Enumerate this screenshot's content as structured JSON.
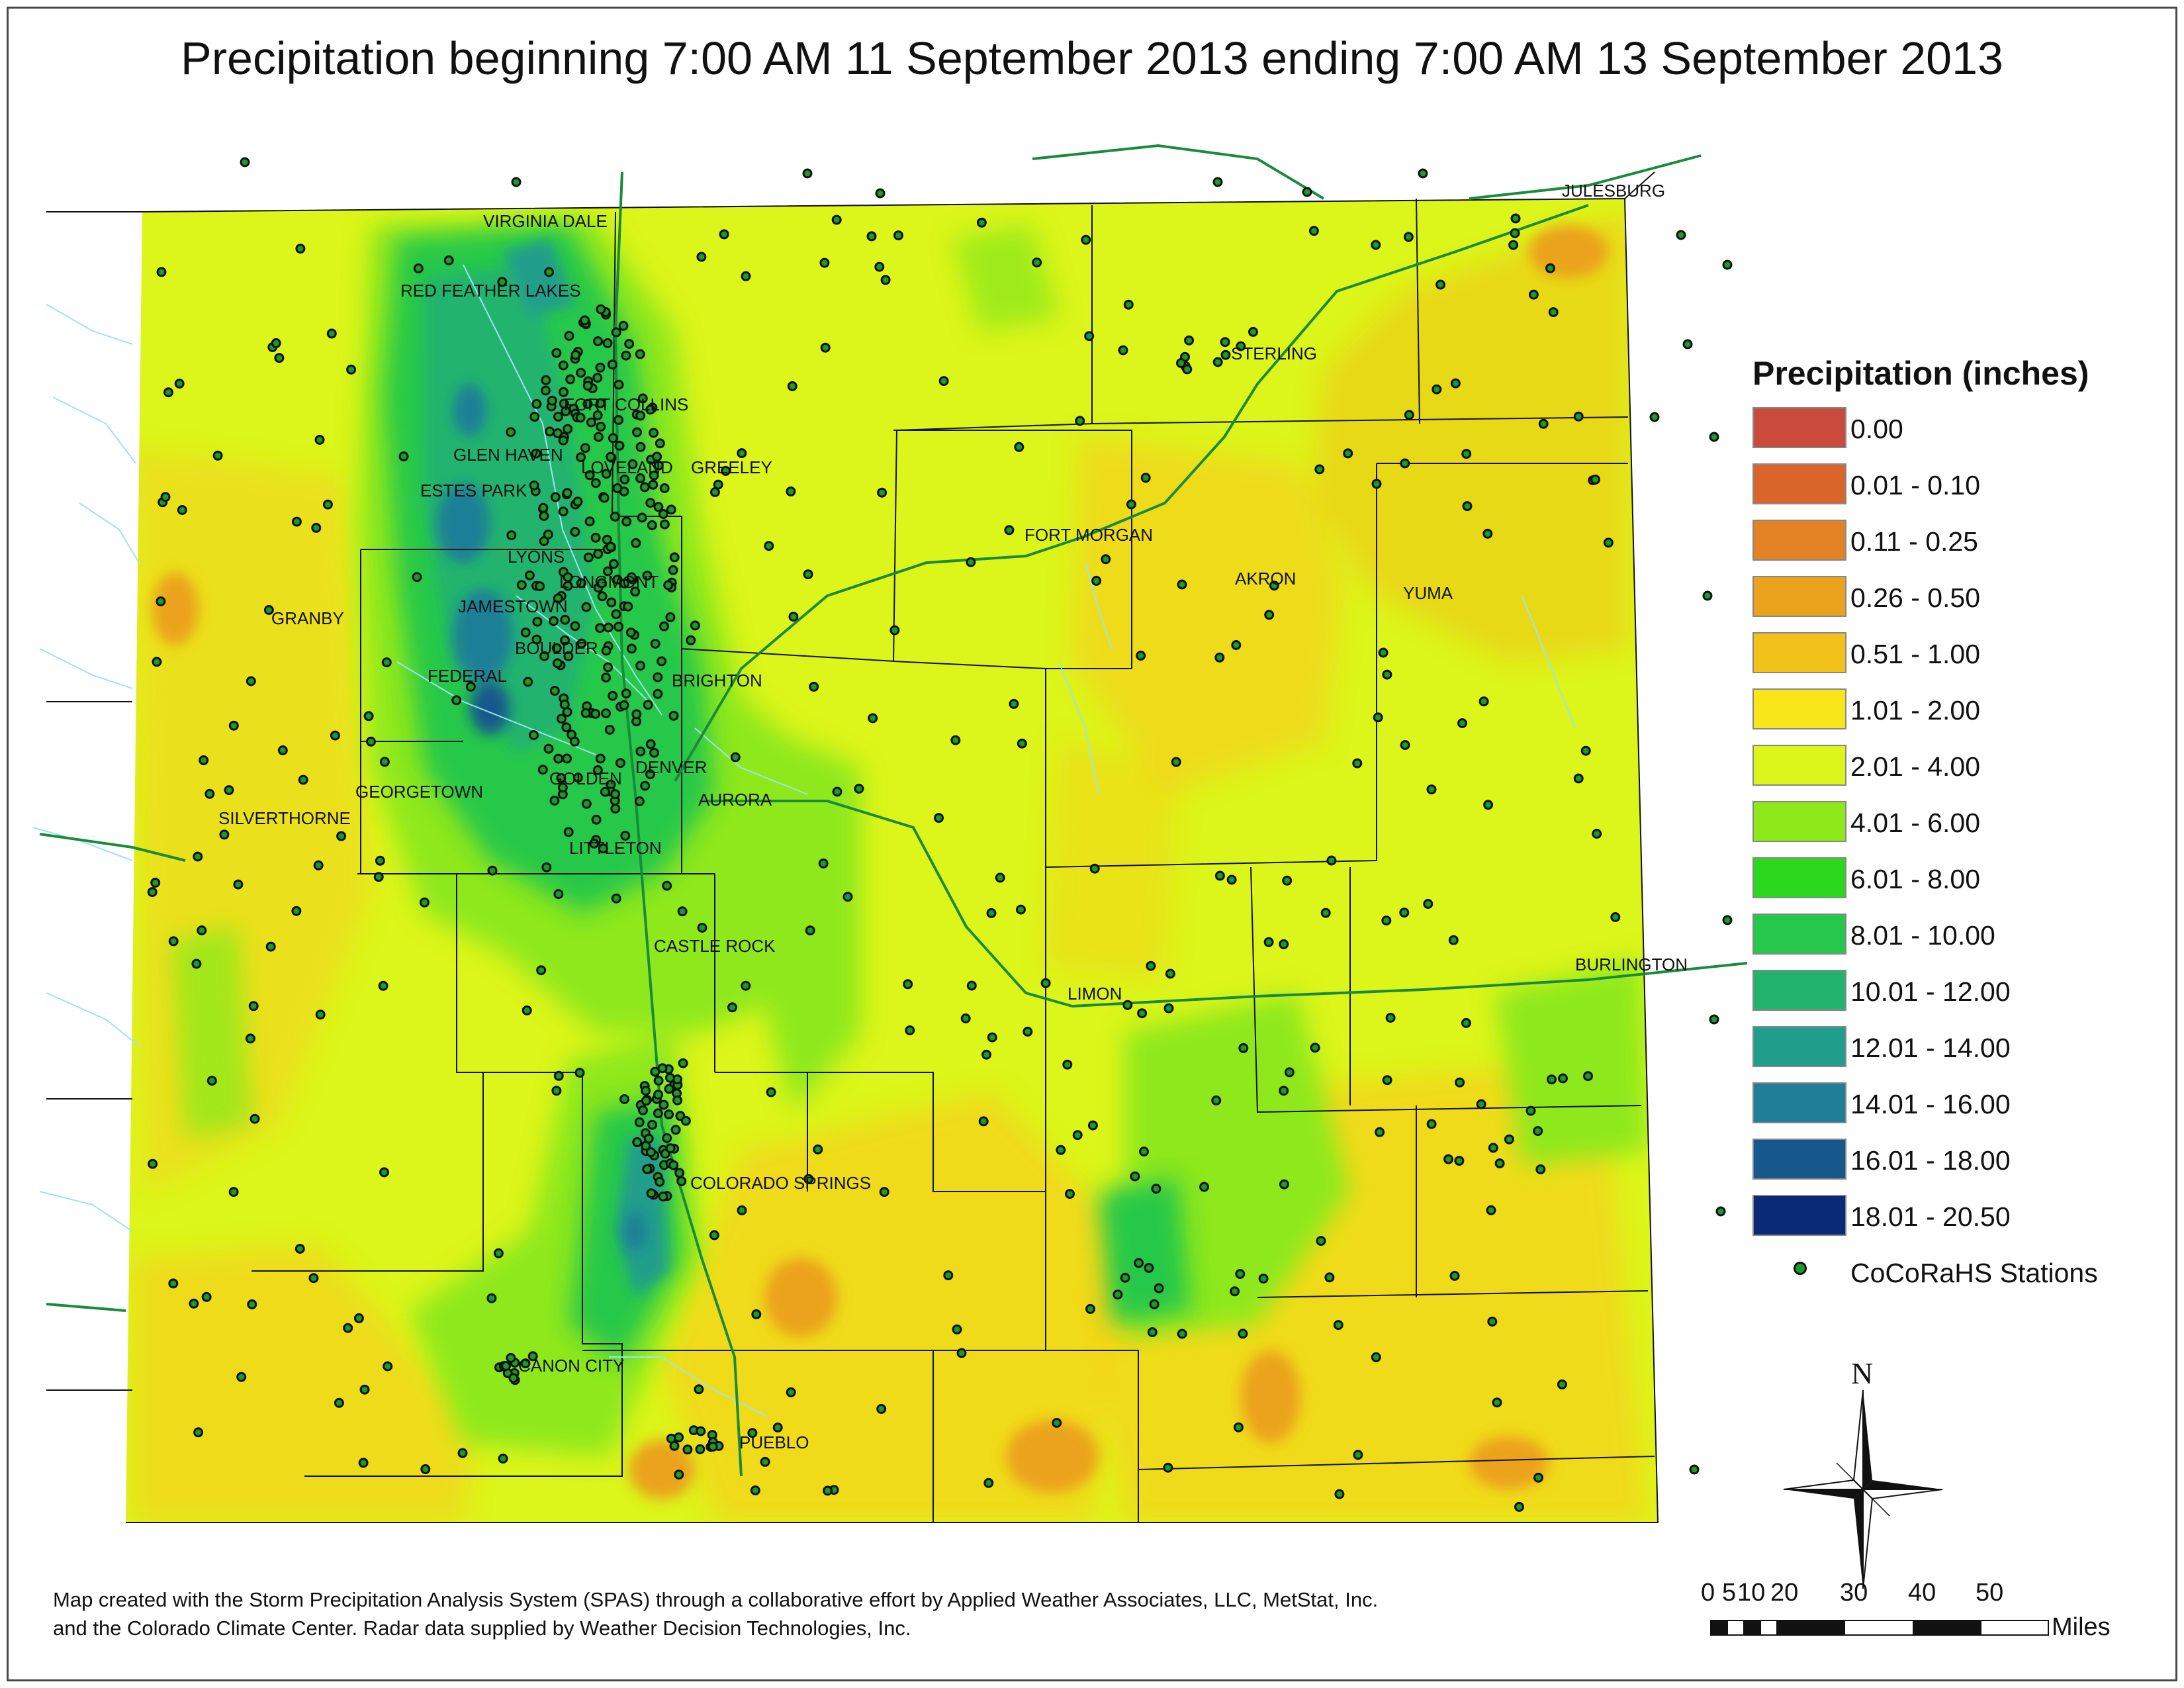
{
  "title": "Precipitation beginning 7:00 AM 11 September 2013 ending 7:00 AM 13 September 2013",
  "legend": {
    "title": "Precipitation (inches)",
    "classes": [
      {
        "label": "0.00",
        "color": "#c84b3c"
      },
      {
        "label": "0.01 - 0.10",
        "color": "#d9652b"
      },
      {
        "label": "0.11 - 0.25",
        "color": "#e28224"
      },
      {
        "label": "0.26 - 0.50",
        "color": "#eba21c"
      },
      {
        "label": "0.51 - 1.00",
        "color": "#f2c11a"
      },
      {
        "label": "1.01 - 2.00",
        "color": "#f9e61a"
      },
      {
        "label": "2.01 - 4.00",
        "color": "#dcf51a"
      },
      {
        "label": "4.01 - 6.00",
        "color": "#8ee81a"
      },
      {
        "label": "6.01 - 8.00",
        "color": "#2bd81e"
      },
      {
        "label": "8.01 - 10.00",
        "color": "#25c84a"
      },
      {
        "label": "10.01 - 12.00",
        "color": "#22b46e"
      },
      {
        "label": "12.01 - 14.00",
        "color": "#209e8c"
      },
      {
        "label": "14.01 - 16.00",
        "color": "#1f7f98"
      },
      {
        "label": "16.01 - 18.00",
        "color": "#17588c"
      },
      {
        "label": "18.01 - 20.50",
        "color": "#0a2a78"
      }
    ],
    "stations_label": "CoCoRaHS Stations"
  },
  "cities": [
    "VIRGINIA DALE",
    "RED FEATHER LAKES",
    "FORT COLLINS",
    "GLEN HAVEN",
    "LOVELAND",
    "GREELEY",
    "ESTES PARK",
    "LYONS",
    "LONGMONT",
    "JAMESTOWN",
    "BOULDER",
    "FEDERAL",
    "BRIGHTON",
    "DENVER",
    "GOLDEN",
    "AURORA",
    "LITTLETON",
    "GEORGETOWN",
    "SILVERTHORNE",
    "GRANBY",
    "CASTLE ROCK",
    "COLORADO SPRINGS",
    "CANON CITY",
    "PUEBLO",
    "LIMON",
    "BURLINGTON",
    "FORT MORGAN",
    "AKRON",
    "YUMA",
    "STERLING",
    "JULESBURG"
  ],
  "north_label": "N",
  "scale_bar": {
    "ticks": [
      "0",
      "5",
      "10",
      "20",
      "30",
      "40",
      "50"
    ],
    "unit": "Miles"
  },
  "credits": {
    "line1": "Map created with the Storm Precipitation Analysis System (SPAS) through a collaborative effort by Applied Weather Associates, LLC, MetStat, Inc.",
    "line2": "and the Colorado Climate Center.  Radar data supplied by Weather Decision Technologies, Inc."
  }
}
